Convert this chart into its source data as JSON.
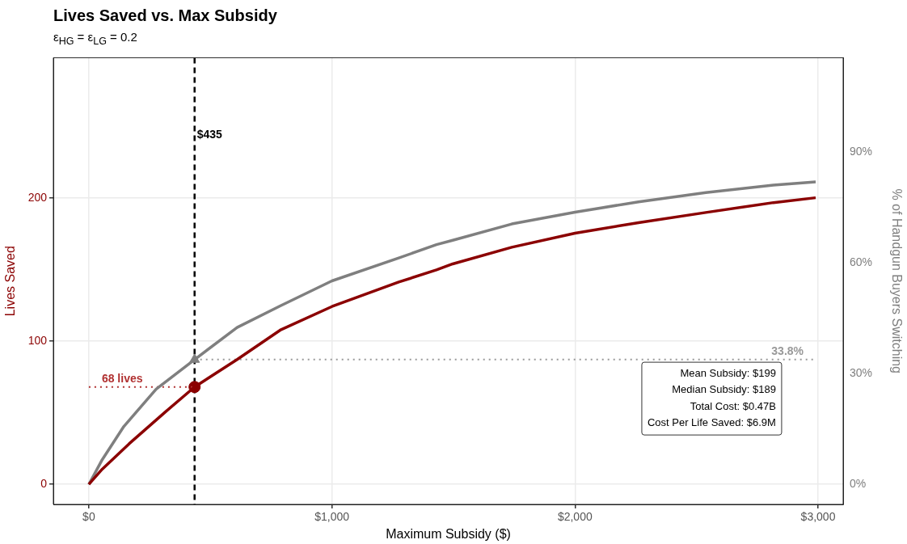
{
  "chart_data": {
    "type": "line",
    "title": "Lives Saved vs. Max Subsidy",
    "subtitle": "ε$_{HG}$ = ε$_{LG}$ = 0.2",
    "xlabel": "Maximum Subsidy ($)",
    "ylabel": "Lives Saved",
    "y2label": "% of Handgun Buyers Switching",
    "xlim": [
      -146,
      3103
    ],
    "xticks": [
      {
        "value": 0,
        "label": "$0"
      },
      {
        "value": 1000,
        "label": "$1,000"
      },
      {
        "value": 2000,
        "label": "$2,000"
      },
      {
        "value": 3000,
        "label": "$3,000"
      }
    ],
    "ylim": [
      -14,
      298
    ],
    "yticks": [
      0,
      100,
      200
    ],
    "y2lim": [
      -5.4,
      115.5
    ],
    "y2ticks": [
      {
        "value": 0,
        "label": "0%"
      },
      {
        "value": 30,
        "label": "30%"
      },
      {
        "value": 60,
        "label": "60%"
      },
      {
        "value": 90,
        "label": "90%"
      }
    ],
    "grid": true,
    "legend": false,
    "marker": "none",
    "line_style": "solid",
    "series": [
      {
        "axis": "y",
        "color": "#8b0000",
        "x": [
          0,
          55,
          166,
          310,
          435,
          610,
          787,
          1000,
          1275,
          1430,
          1497,
          1740,
          2000,
          2261,
          2538,
          2816,
          2990
        ],
        "values": [
          0,
          10.6,
          28.4,
          49.9,
          68,
          87.2,
          107.7,
          124.2,
          141.3,
          149.8,
          154,
          165.6,
          175.4,
          182.8,
          189.9,
          196.8,
          200.2
        ]
      },
      {
        "axis": "y2",
        "color": "#7f7f7f",
        "x": [
          0,
          55,
          144,
          277,
          435,
          610,
          787,
          1000,
          1275,
          1430,
          1497,
          1740,
          2000,
          2261,
          2538,
          2816,
          2990
        ],
        "values": [
          0,
          6.7,
          15.7,
          25.8,
          33.8,
          42.5,
          48.3,
          55.1,
          61.3,
          64.9,
          66.1,
          70.5,
          73.7,
          76.5,
          79,
          81,
          81.9
        ]
      },
      {
        "axis": "y",
        "color": "#b03030",
        "line_style": "dotted",
        "x": [
          0,
          435
        ],
        "values": [
          68,
          68
        ],
        "value_labels": [
          "68 lives",
          null
        ]
      },
      {
        "axis": "y2",
        "color": "#999999",
        "line_style": "dotted",
        "x": [
          435,
          2990
        ],
        "values": [
          33.8,
          33.8
        ],
        "value_labels": [
          null,
          "33.8%"
        ]
      },
      {
        "type": "scatter",
        "axis": "y",
        "color": "#8b0000",
        "marker": "circle",
        "x": [
          435
        ],
        "values": [
          68
        ]
      },
      {
        "type": "scatter",
        "axis": "y2",
        "color": "#7f7f7f",
        "marker": "triangle",
        "x": [
          435
        ],
        "values": [
          33.8
        ]
      }
    ],
    "ref_lines": [
      {
        "axis": "x",
        "value": 435,
        "label": "$435",
        "color": "#000000",
        "line_style": "dashed"
      }
    ],
    "annotations": [
      "Mean Subsidy: $199",
      "Median Subsidy: $189",
      "Total Cost: $0.47B",
      "Cost Per Life Saved: $6.9M"
    ]
  }
}
